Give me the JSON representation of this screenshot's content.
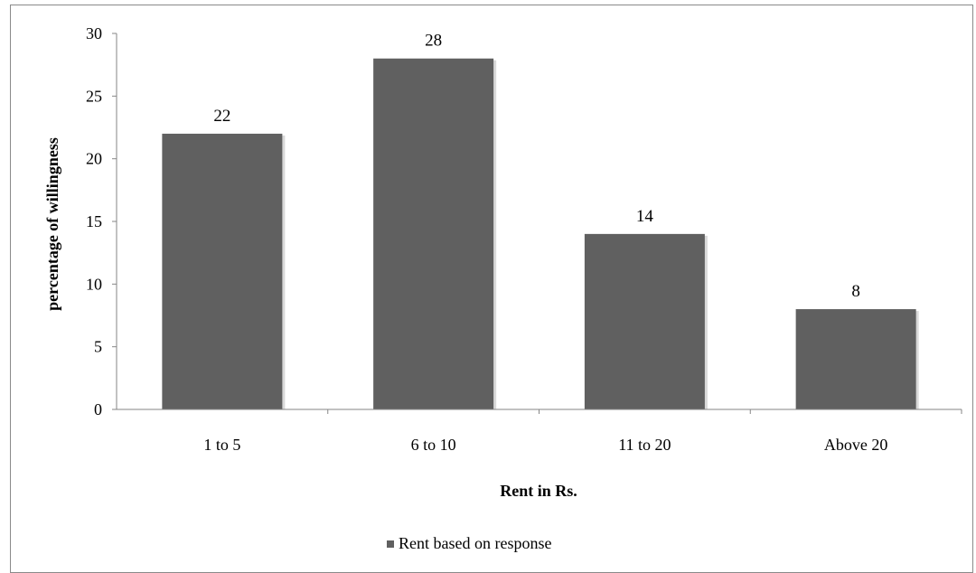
{
  "chart_data": {
    "type": "bar",
    "categories": [
      "1 to 5",
      "6 to 10",
      "11 to 20",
      "Above 20"
    ],
    "series": [
      {
        "name": "Rent based on response",
        "values": [
          22,
          28,
          14,
          8
        ],
        "color": "#606060"
      }
    ],
    "data_labels": [
      "22",
      "28",
      "14",
      "8"
    ],
    "xlabel": "Rent in Rs.",
    "ylabel": "percentage of willingness",
    "ylim": [
      0,
      30
    ],
    "yticks": [
      0,
      5,
      10,
      15,
      20,
      25,
      30
    ],
    "grid": false,
    "legend_position": "bottom"
  }
}
